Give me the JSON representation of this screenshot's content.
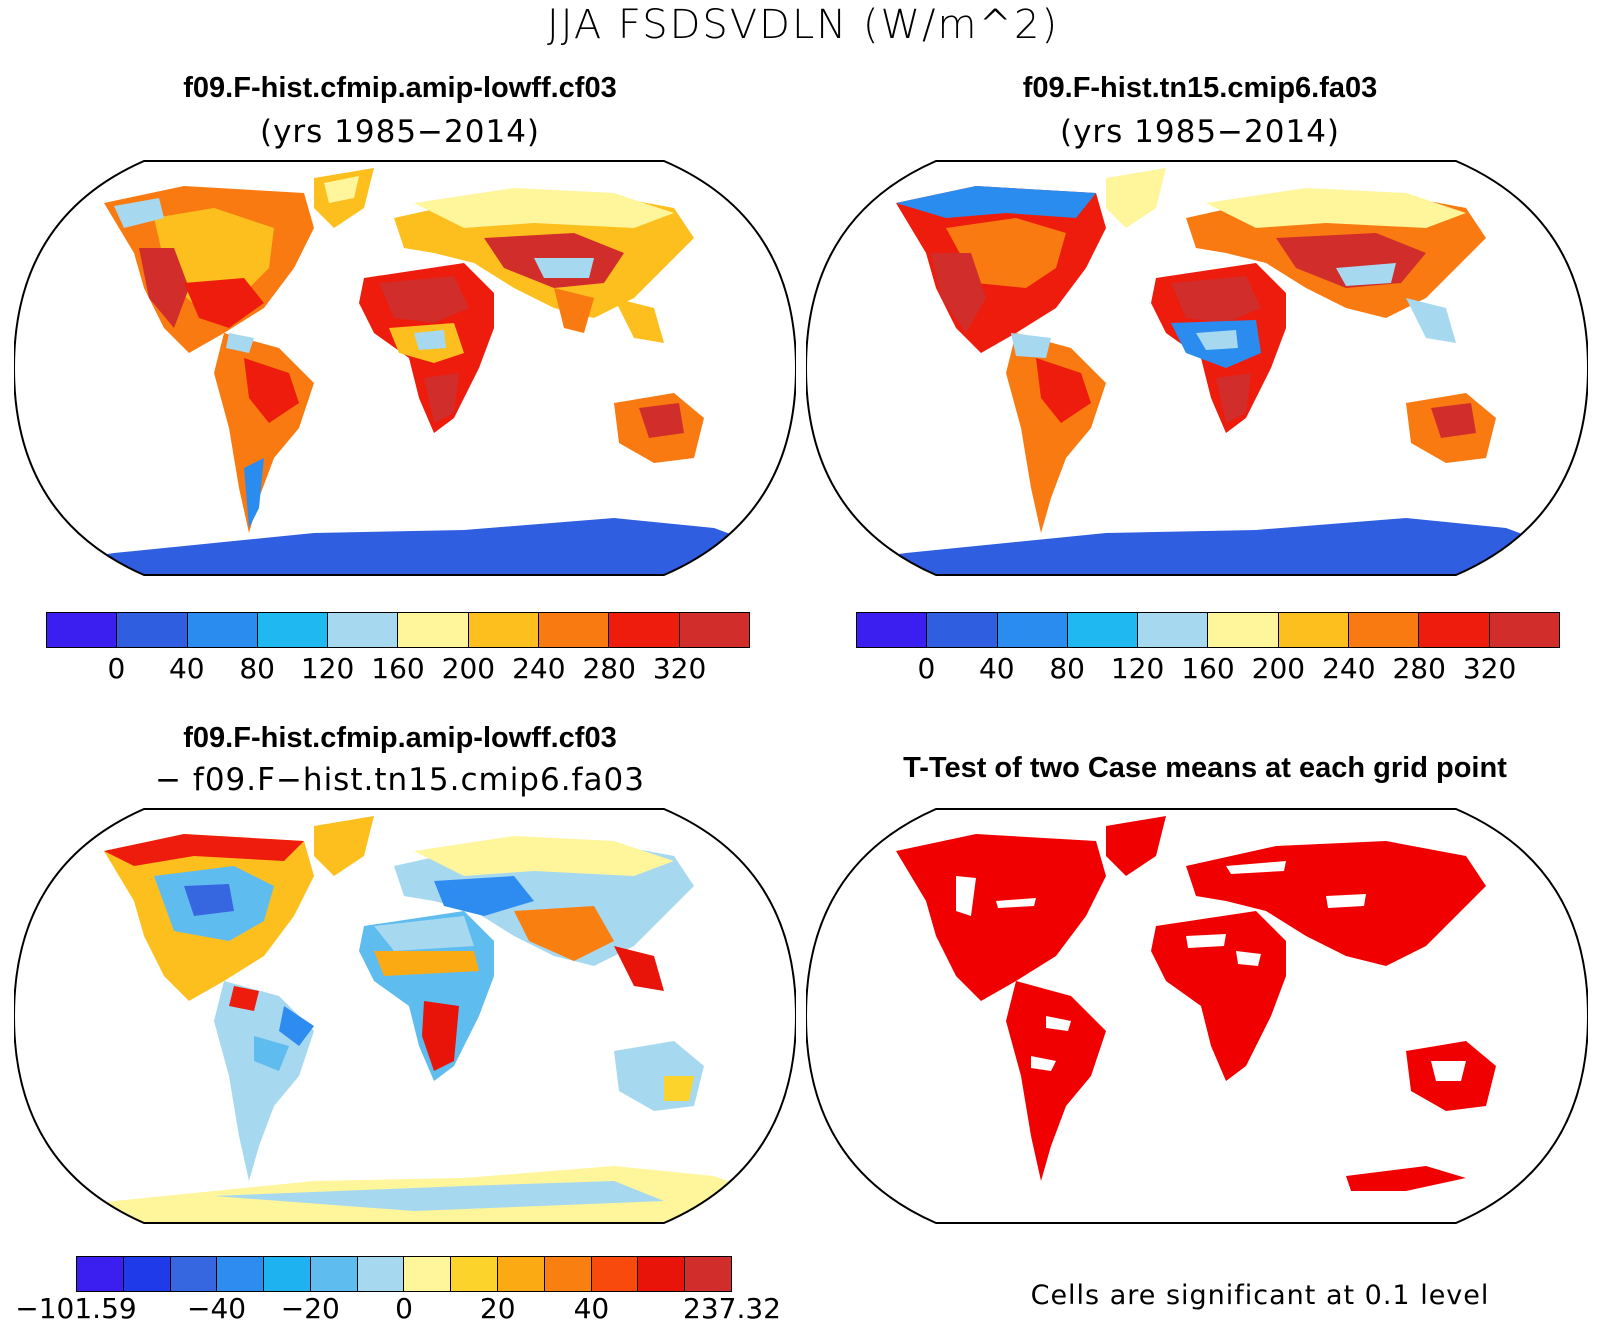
{
  "figure": {
    "title": "JJA FSDSVDLN (W/m^2)"
  },
  "panels": [
    {
      "title": "f09.F-hist.cfmip.amip-lowff.cf03",
      "subtitle": "(yrs 1985−2014)"
    },
    {
      "title": "f09.F-hist.tn15.cmip6.fa03",
      "subtitle": "(yrs 1985−2014)"
    },
    {
      "title": "f09.F-hist.cfmip.amip-lowff.cf03",
      "subtitle": "− f09.F−hist.tn15.cmip6.fa03"
    },
    {
      "title": "T-Test of two Case means at each grid point",
      "subtitle": ""
    }
  ],
  "colorbars": {
    "absolute": {
      "colors": [
        "#3b1ef0",
        "#2f5fe0",
        "#2b8cf0",
        "#1fb8f0",
        "#a6d8f0",
        "#fff59a",
        "#fcbf1e",
        "#f97a10",
        "#ee1c0c",
        "#d12d2a"
      ],
      "ticks": [
        "0",
        "40",
        "80",
        "120",
        "160",
        "200",
        "240",
        "280",
        "320"
      ]
    },
    "difference": {
      "colors": [
        "#3b1ef0",
        "#1f3ae8",
        "#3767e0",
        "#2e8cf0",
        "#1fb2f0",
        "#5fbcee",
        "#a6d8f0",
        "#fff59a",
        "#fcd32a",
        "#fcaa14",
        "#f98010",
        "#f74a0c",
        "#e8140a",
        "#d12d2a"
      ],
      "ticks": [
        "−101.59",
        "−40",
        "−20",
        "0",
        "20",
        "40",
        "237.32"
      ]
    }
  },
  "ttest_note": "Cells are significant at 0.1 level"
}
